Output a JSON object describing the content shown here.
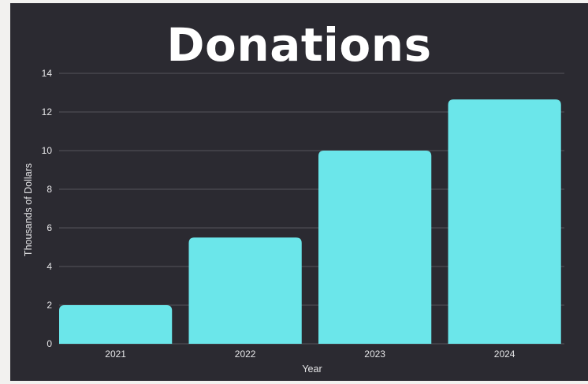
{
  "chart_data": {
    "type": "bar",
    "title": "Donations",
    "categories": [
      "2021",
      "2022",
      "2023",
      "2024"
    ],
    "values": [
      2.0,
      5.5,
      10.0,
      12.65
    ],
    "xlabel": "Year",
    "ylabel": "Thousands of Dollars",
    "ylim": [
      0,
      14
    ],
    "yticks": [
      0,
      2,
      4,
      6,
      8,
      10,
      12,
      14
    ],
    "grid": true,
    "legend": "none",
    "bar_color": "#6be6ea",
    "background_color": "#2b2a31"
  }
}
